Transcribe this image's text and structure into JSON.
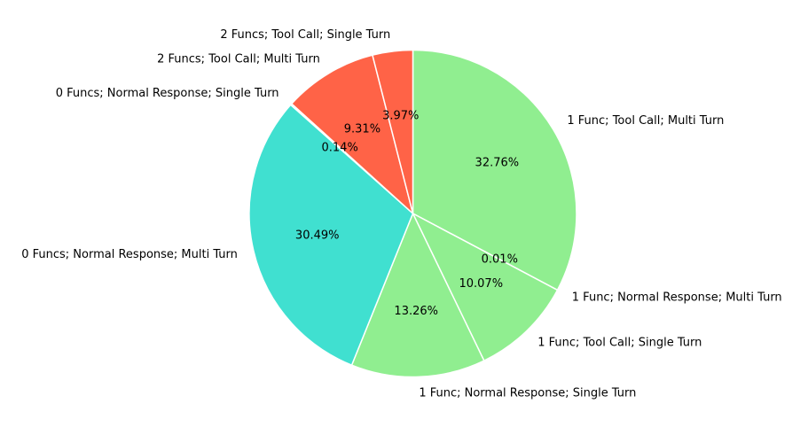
{
  "chart_data": {
    "type": "pie",
    "title": "",
    "start_angle_deg": 90,
    "direction": "clockwise",
    "slices": [
      {
        "label": "1 Func; Tool Call; Multi Turn",
        "pct_label": "32.76%",
        "value": 32.76,
        "color": "#90EE90"
      },
      {
        "label": "1 Func; Normal Response; Multi Turn",
        "pct_label": "0.01%",
        "value": 0.01,
        "color": "#90EE90"
      },
      {
        "label": "1 Func; Tool Call; Single Turn",
        "pct_label": "10.07%",
        "value": 10.07,
        "color": "#90EE90"
      },
      {
        "label": "1 Func; Normal Response; Single Turn",
        "pct_label": "13.26%",
        "value": 13.26,
        "color": "#90EE90"
      },
      {
        "label": "0 Funcs; Normal Response; Multi Turn",
        "pct_label": "30.49%",
        "value": 30.49,
        "color": "#40E0D0"
      },
      {
        "label": "0 Funcs; Normal Response; Single Turn",
        "pct_label": "0.14%",
        "value": 0.14,
        "color": "#40E0D0"
      },
      {
        "label": "2 Funcs; Tool Call; Multi Turn",
        "pct_label": "9.31%",
        "value": 9.31,
        "color": "#FF6347"
      },
      {
        "label": "2 Funcs; Tool Call; Single Turn",
        "pct_label": "3.97%",
        "value": 3.97,
        "color": "#FF6347"
      }
    ]
  }
}
